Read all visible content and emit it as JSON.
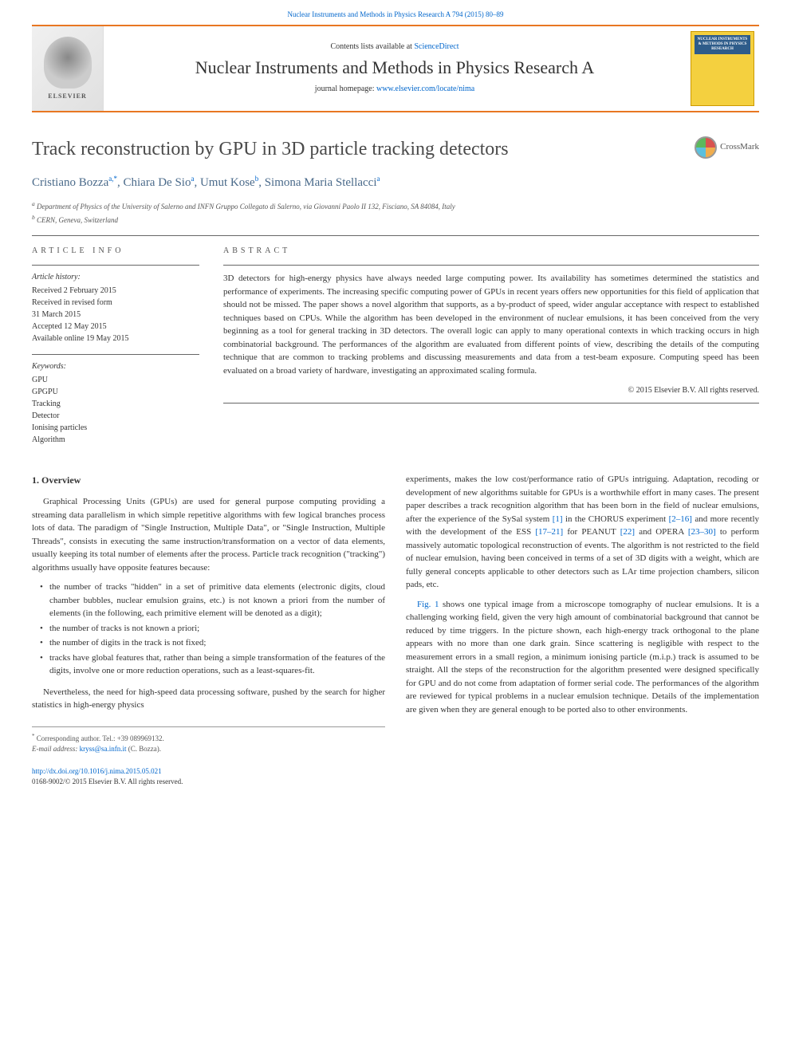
{
  "top_citation": "Nuclear Instruments and Methods in Physics Research A 794 (2015) 80–89",
  "banner": {
    "contents_prefix": "Contents lists available at ",
    "contents_link": "ScienceDirect",
    "journal_name": "Nuclear Instruments and Methods in Physics Research A",
    "homepage_prefix": "journal homepage: ",
    "homepage_link": "www.elsevier.com/locate/nima",
    "elsevier_text": "ELSEVIER",
    "cover_text": "NUCLEAR INSTRUMENTS & METHODS IN PHYSICS RESEARCH"
  },
  "article": {
    "title": "Track reconstruction by GPU in 3D particle tracking detectors",
    "crossmark_label": "CrossMark",
    "authors_html": "Cristiano Bozza",
    "authors": [
      {
        "name": "Cristiano Bozza",
        "sup": "a,*"
      },
      {
        "name": "Chiara De Sio",
        "sup": "a"
      },
      {
        "name": "Umut Kose",
        "sup": "b"
      },
      {
        "name": "Simona Maria Stellacci",
        "sup": "a"
      }
    ],
    "affiliations": [
      {
        "sup": "a",
        "text": "Department of Physics of the University of Salerno and INFN Gruppo Collegato di Salerno, via Giovanni Paolo II 132, Fisciano, SA 84084, Italy"
      },
      {
        "sup": "b",
        "text": "CERN, Geneva, Switzerland"
      }
    ]
  },
  "info": {
    "heading": "ARTICLE INFO",
    "history_label": "Article history:",
    "history": [
      "Received 2 February 2015",
      "Received in revised form",
      "31 March 2015",
      "Accepted 12 May 2015",
      "Available online 19 May 2015"
    ],
    "keywords_label": "Keywords:",
    "keywords": [
      "GPU",
      "GPGPU",
      "Tracking",
      "Detector",
      "Ionising particles",
      "Algorithm"
    ]
  },
  "abstract": {
    "heading": "ABSTRACT",
    "text": "3D detectors for high-energy physics have always needed large computing power. Its availability has sometimes determined the statistics and performance of experiments. The increasing specific computing power of GPUs in recent years offers new opportunities for this field of application that should not be missed. The paper shows a novel algorithm that supports, as a by-product of speed, wider angular acceptance with respect to established techniques based on CPUs. While the algorithm has been developed in the environment of nuclear emulsions, it has been conceived from the very beginning as a tool for general tracking in 3D detectors. The overall logic can apply to many operational contexts in which tracking occurs in high combinatorial background. The performances of the algorithm are evaluated from different points of view, describing the details of the computing technique that are common to tracking problems and discussing measurements and data from a test-beam exposure. Computing speed has been evaluated on a broad variety of hardware, investigating an approximated scaling formula.",
    "copyright": "© 2015 Elsevier B.V. All rights reserved."
  },
  "body": {
    "sec1_heading": "1.  Overview",
    "col1_p1": "Graphical Processing Units (GPUs) are used for general purpose computing providing a streaming data parallelism in which simple repetitive algorithms with few logical branches process lots of data. The paradigm of \"Single Instruction, Multiple Data\", or \"Single Instruction, Multiple Threads\", consists in executing the same instruction/transformation on a vector of data elements, usually keeping its total number of elements after the process. Particle track recognition (\"tracking\") algorithms usually have opposite features because:",
    "bullets": [
      "the number of tracks \"hidden\" in a set of primitive data elements (electronic digits, cloud chamber bubbles, nuclear emulsion grains, etc.) is not known a priori from the number of elements (in the following, each primitive element will be denoted as a digit);",
      "the number of tracks is not known a priori;",
      "the number of digits in the track is not fixed;",
      "tracks have global features that, rather than being a simple transformation of the features of the digits, involve one or more reduction operations, such as a least-squares-fit."
    ],
    "col1_p2": "Nevertheless, the need for high-speed data processing software, pushed by the search for higher statistics in high-energy physics",
    "col2_p1_parts": {
      "t1": "experiments, makes the low cost/performance ratio of GPUs intriguing. Adaptation, recoding or development of new algorithms suitable for GPUs is a worthwhile effort in many cases. The present paper describes a track recognition algorithm that has been born in the field of nuclear emulsions, after the experience of the SySal system ",
      "r1": "[1]",
      "t2": " in the CHORUS experiment ",
      "r2": "[2–16]",
      "t3": " and more recently with the development of the ESS ",
      "r3": "[17–21]",
      "t4": " for PEANUT ",
      "r4": "[22]",
      "t5": " and OPERA ",
      "r5": "[23–30]",
      "t6": " to perform massively automatic topological reconstruction of events. The algorithm is not restricted to the field of nuclear emulsion, having been conceived in terms of a set of 3D digits with a weight, which are fully general concepts applicable to other detectors such as LAr time projection chambers, silicon pads, etc."
    },
    "col2_p2_parts": {
      "r1": "Fig. 1",
      "t1": " shows one typical image from a microscope tomography of nuclear emulsions. It is a challenging working field, given the very high amount of combinatorial background that cannot be reduced by time triggers. In the picture shown, each high-energy track orthogonal to the plane appears with no more than one dark grain. Since scattering is negligible with respect to the measurement errors in a small region, a minimum ionising particle (m.i.p.) track is assumed to be straight. All the steps of the reconstruction for the algorithm presented were designed specifically for GPU and do not come from adaptation of former serial code. The performances of the algorithm are reviewed for typical problems in a nuclear emulsion technique. Details of the implementation are given when they are general enough to be ported also to other environments."
    }
  },
  "footer": {
    "corr_label": "Corresponding author. Tel.: ",
    "corr_tel": "+39 089969132.",
    "email_label": "E-mail address: ",
    "email": "kryss@sa.infn.it",
    "email_suffix": " (C. Bozza).",
    "doi": "http://dx.doi.org/10.1016/j.nima.2015.05.021",
    "issn_line": "0168-9002/© 2015 Elsevier B.V. All rights reserved."
  },
  "colors": {
    "orange_rule": "#e87722",
    "link": "#0066cc",
    "author_color": "#4a6a8a",
    "cover_bg": "#f4d03f",
    "cover_title_bg": "#2e5c8a"
  },
  "typography": {
    "body_font": "Georgia, Times New Roman, serif",
    "title_size_pt": 18,
    "journal_name_size_pt": 16,
    "body_size_pt": 8.5,
    "abstract_size_pt": 8.5
  }
}
